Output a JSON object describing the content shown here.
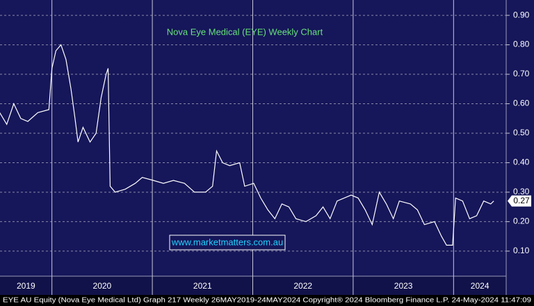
{
  "chart_data": {
    "type": "line",
    "title": "Nova Eye Medical (EYE) Weekly Chart",
    "watermark": "www.marketmatters.com.au",
    "footer": "EYE AU Equity (Nova Eye Medical Ltd) Graph 217  Weekly 26MAY2019-24MAY2024  Copyright® 2024 Bloomberg Finance L.P.   24-May-2024 11:47:09",
    "last_value": 0.27,
    "x": [
      2019.48,
      2019.55,
      2019.62,
      2019.69,
      2019.76,
      2019.86,
      2019.97,
      2020.0,
      2020.04,
      2020.09,
      2020.14,
      2020.19,
      2020.23,
      2020.26,
      2020.31,
      2020.38,
      2020.44,
      2020.49,
      2020.54,
      2020.56,
      2020.58,
      2020.63,
      2020.73,
      2020.83,
      2020.9,
      2021.01,
      2021.11,
      2021.21,
      2021.32,
      2021.42,
      2021.53,
      2021.6,
      2021.64,
      2021.7,
      2021.77,
      2021.87,
      2021.92,
      2022.01,
      2022.08,
      2022.15,
      2022.22,
      2022.29,
      2022.36,
      2022.43,
      2022.53,
      2022.63,
      2022.7,
      2022.77,
      2022.84,
      2022.91,
      2022.98,
      2023.05,
      2023.12,
      2023.19,
      2023.26,
      2023.33,
      2023.4,
      2023.46,
      2023.57,
      2023.64,
      2023.71,
      2023.81,
      2023.88,
      2023.93,
      2023.99,
      2024.02,
      2024.09,
      2024.16,
      2024.23,
      2024.3,
      2024.37,
      2024.4
    ],
    "series": [
      {
        "name": "EYE",
        "color": "#ffffff",
        "values": [
          0.57,
          0.53,
          0.6,
          0.55,
          0.54,
          0.57,
          0.58,
          0.72,
          0.78,
          0.8,
          0.75,
          0.65,
          0.55,
          0.47,
          0.52,
          0.47,
          0.5,
          0.62,
          0.7,
          0.72,
          0.32,
          0.3,
          0.31,
          0.33,
          0.35,
          0.34,
          0.33,
          0.34,
          0.33,
          0.3,
          0.3,
          0.32,
          0.44,
          0.4,
          0.39,
          0.4,
          0.32,
          0.33,
          0.28,
          0.24,
          0.21,
          0.26,
          0.25,
          0.21,
          0.2,
          0.22,
          0.25,
          0.21,
          0.27,
          0.28,
          0.29,
          0.28,
          0.24,
          0.19,
          0.3,
          0.26,
          0.21,
          0.27,
          0.26,
          0.24,
          0.19,
          0.2,
          0.15,
          0.12,
          0.12,
          0.28,
          0.27,
          0.21,
          0.22,
          0.27,
          0.26,
          0.27
        ]
      }
    ],
    "xlim": [
      2019.483,
      2024.524
    ],
    "xticks": [
      {
        "value": 2019,
        "label": "2019"
      },
      {
        "value": 2020,
        "label": "2020"
      },
      {
        "value": 2021,
        "label": "2021"
      },
      {
        "value": 2022,
        "label": "2022"
      },
      {
        "value": 2023,
        "label": "2023"
      },
      {
        "value": 2024,
        "label": "2024"
      }
    ],
    "ylim": [
      0.015,
      0.952
    ],
    "yticks": [
      {
        "value": 0.1,
        "label": "0.10"
      },
      {
        "value": 0.2,
        "label": "0.20"
      },
      {
        "value": 0.3,
        "label": "0.30"
      },
      {
        "value": 0.4,
        "label": "0.40"
      },
      {
        "value": 0.5,
        "label": "0.50"
      },
      {
        "value": 0.6,
        "label": "0.60"
      },
      {
        "value": 0.7,
        "label": "0.70"
      },
      {
        "value": 0.8,
        "label": "0.80"
      },
      {
        "value": 0.9,
        "label": "0.90"
      }
    ],
    "grid": true
  }
}
